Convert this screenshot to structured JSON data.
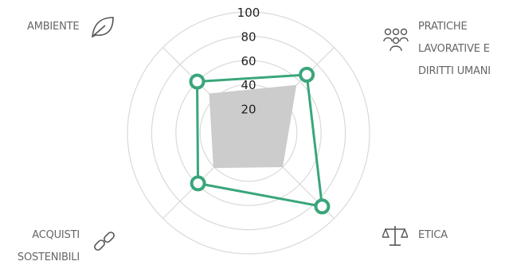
{
  "chart_data": {
    "type": "radar",
    "rlim": [
      0,
      100
    ],
    "rticks": [
      "20",
      "40",
      "60",
      "80",
      "100"
    ],
    "axes": [
      {
        "label": "AMBIENTE",
        "icon": "leaf-icon"
      },
      {
        "label": "PRATICHE LAVORATIVE E DIRITTI UMANI",
        "icon": "people-icon"
      },
      {
        "label": "ETICA",
        "icon": "scales-icon"
      },
      {
        "label": "ACQUISTI SOSTENIBILI",
        "icon": "chain-link-icon"
      }
    ],
    "series": [
      {
        "values": [
          60,
          68,
          86,
          59
        ],
        "color": "#3aa67a",
        "style": "line-with-markers"
      },
      {
        "values": [
          46,
          56,
          40,
          41
        ],
        "color": "#cccccc",
        "style": "filled-area"
      }
    ],
    "grid": true
  },
  "labels": {
    "ambiente": "AMBIENTE",
    "pratiche_1": "PRATICHE",
    "pratiche_2": "LAVORATIVE E",
    "pratiche_3": "DIRITTI UMANI",
    "etica": "ETICA",
    "acquisti_1": "ACQUISTI",
    "acquisti_2": "SOSTENIBILI"
  }
}
